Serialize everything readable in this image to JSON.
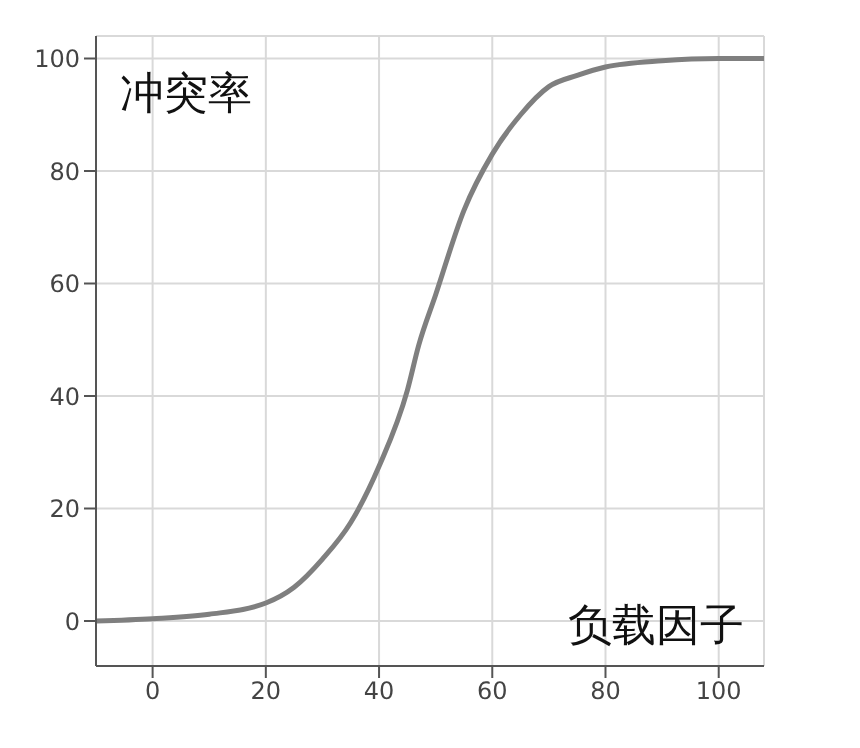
{
  "chart_data": {
    "type": "line",
    "xlabel": "负载因子",
    "ylabel": "冲突率",
    "x": [
      -10,
      0,
      10,
      20,
      25,
      30,
      35,
      40,
      45,
      47,
      50,
      55,
      60,
      65,
      70,
      75,
      80,
      90,
      100,
      108
    ],
    "series": [
      {
        "color": "#7f7f7f",
        "values": [
          0,
          0.4,
          1.2,
          3.2,
          6,
          11,
          17.5,
          27.5,
          41,
          49,
          58,
          73,
          83,
          90,
          95,
          97,
          98.5,
          99.6,
          100,
          100
        ]
      }
    ],
    "xlim": [
      -10,
      108
    ],
    "ylim": [
      -8,
      104
    ],
    "xticks": [
      0,
      20,
      40,
      60,
      80,
      100
    ],
    "yticks": [
      0,
      20,
      40,
      60,
      80,
      100
    ],
    "grid": true,
    "marker": "none",
    "line_style": "solid"
  }
}
